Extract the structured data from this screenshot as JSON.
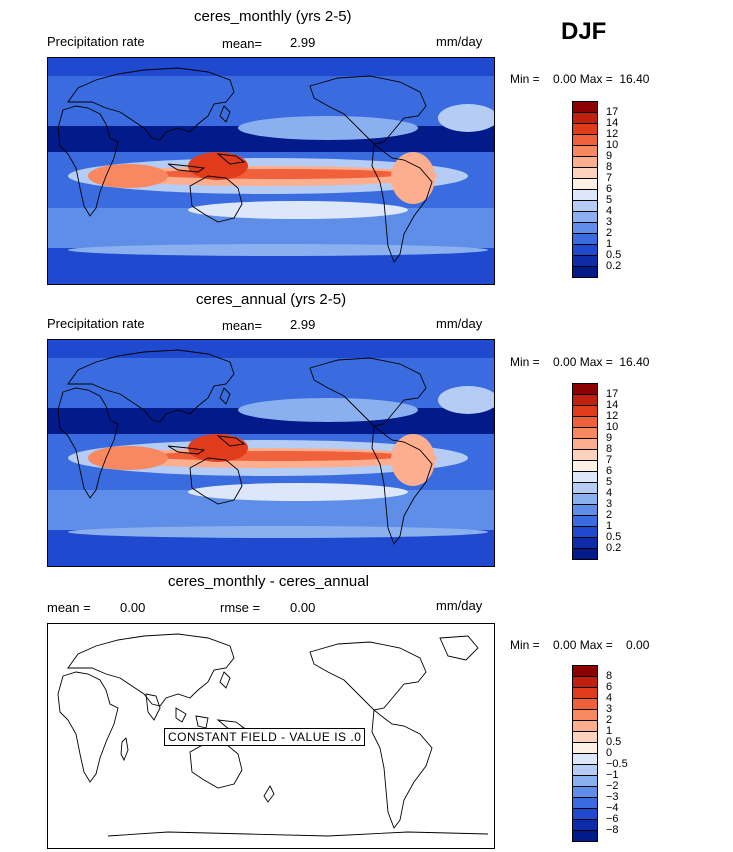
{
  "season": "DJF",
  "panels": [
    {
      "title": "ceres_monthly (yrs 2-5)",
      "left_label": "Precipitation rate",
      "stat1_label": "mean=",
      "stat1_value": "2.99",
      "units": "mm/day",
      "minmax": "Min =    0.00 Max =  16.40",
      "kind": "field"
    },
    {
      "title": "ceres_annual (yrs 2-5)",
      "left_label": "Precipitation rate",
      "stat1_label": "mean=",
      "stat1_value": "2.99",
      "units": "mm/day",
      "minmax": "Min =    0.00 Max =  16.40",
      "kind": "field"
    },
    {
      "title": "ceres_monthly - ceres_annual",
      "left_label": "mean =",
      "left_value": "0.00",
      "stat1_label": "rmse =",
      "stat1_value": "0.00",
      "units": "mm/day",
      "minmax": "Min =    0.00 Max =    0.00",
      "kind": "diff",
      "constant_note": "CONSTANT FIELD - VALUE IS .0"
    }
  ],
  "colorbars": {
    "field": {
      "ticks": [
        "17",
        "14",
        "12",
        "10",
        "9",
        "8",
        "7",
        "6",
        "5",
        "4",
        "3",
        "2",
        "1",
        "0.5",
        "0.2"
      ],
      "colors": [
        "#8b0000",
        "#c1200e",
        "#e03c1c",
        "#f0603a",
        "#f88860",
        "#fcae8e",
        "#fed3bd",
        "#fdf0e4",
        "#dce7fa",
        "#b5cdf5",
        "#8bb0f0",
        "#5f8ee8",
        "#3a6ce0",
        "#1f4acf",
        "#0f2ca8",
        "#021a8a"
      ]
    },
    "diff": {
      "ticks": [
        "8",
        "6",
        "4",
        "3",
        "2",
        "1",
        "0.5",
        "0",
        "−0.5",
        "−1",
        "−2",
        "−3",
        "−4",
        "−6",
        "−8"
      ],
      "colors": [
        "#8b0000",
        "#c1200e",
        "#e03c1c",
        "#f0603a",
        "#f88860",
        "#fcae8e",
        "#fed3bd",
        "#fdf0e4",
        "#dce7fa",
        "#b5cdf5",
        "#8bb0f0",
        "#5f8ee8",
        "#3a6ce0",
        "#1f4acf",
        "#0f2ca8",
        "#021a8a"
      ]
    }
  },
  "chart_data": [
    {
      "type": "heatmap",
      "title": "ceres_monthly (yrs 2-5)",
      "variable": "Precipitation rate",
      "units": "mm/day",
      "season": "DJF",
      "mean": 2.99,
      "min": 0.0,
      "max": 16.4,
      "levels": [
        0.2,
        0.5,
        1,
        2,
        3,
        4,
        5,
        6,
        7,
        8,
        9,
        10,
        12,
        14,
        17
      ]
    },
    {
      "type": "heatmap",
      "title": "ceres_annual (yrs 2-5)",
      "variable": "Precipitation rate",
      "units": "mm/day",
      "season": "DJF",
      "mean": 2.99,
      "min": 0.0,
      "max": 16.4,
      "levels": [
        0.2,
        0.5,
        1,
        2,
        3,
        4,
        5,
        6,
        7,
        8,
        9,
        10,
        12,
        14,
        17
      ]
    },
    {
      "type": "heatmap",
      "title": "ceres_monthly - ceres_annual",
      "units": "mm/day",
      "season": "DJF",
      "mean": 0.0,
      "rmse": 0.0,
      "min": 0.0,
      "max": 0.0,
      "levels": [
        -8,
        -6,
        -4,
        -3,
        -2,
        -1,
        -0.5,
        0,
        0.5,
        1,
        2,
        3,
        4,
        6,
        8
      ],
      "note": "CONSTANT FIELD - VALUE IS .0"
    }
  ]
}
